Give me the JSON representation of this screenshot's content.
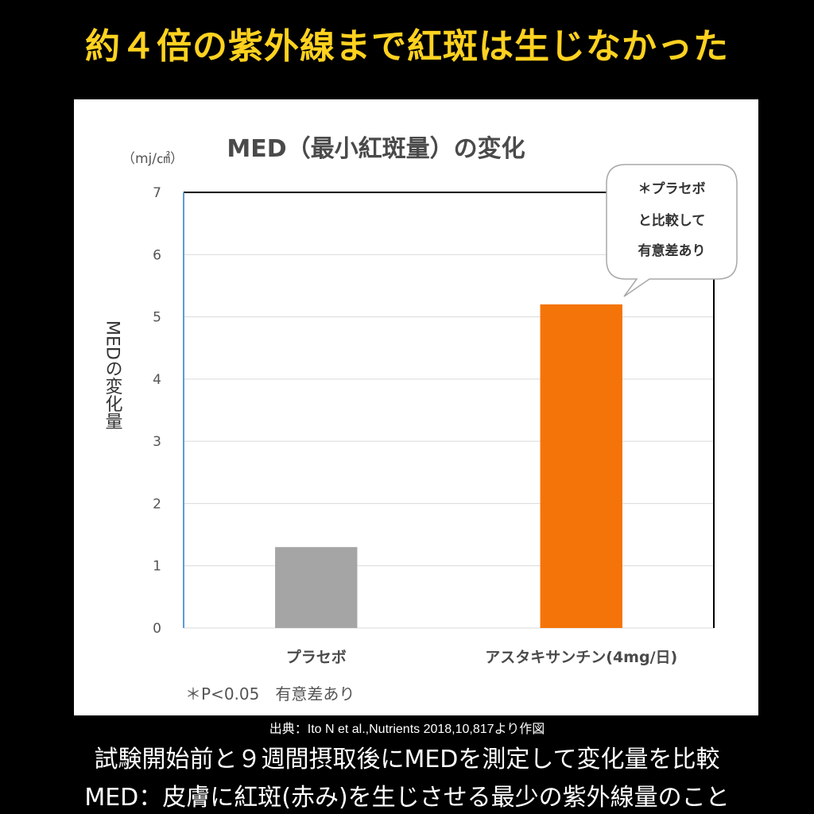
{
  "headline": "約４倍の紫外線まで紅斑は生じなかった",
  "citation": "出典：Ito N et al.,Nutrients 2018,10,817より作図",
  "footer": {
    "line1": "試験開始前と９週間摂取後にMEDを測定して変化量を比較",
    "line2": "MED：皮膚に紅斑(赤み)を生じさせる最少の紫外線量のこと"
  },
  "callout": {
    "lines": [
      "＊プラセボ",
      "と比較して",
      "有意差あり"
    ]
  },
  "significance_note": "＊P<0.05　有意差あり",
  "colors": {
    "headline": "#FFD21F",
    "placebo_bar": "#A5A5A5",
    "astaxanthin_bar": "#F47409",
    "y_axis_line": "#5B9BD5",
    "gridline": "#D9D9D9"
  },
  "chart_data": {
    "type": "bar",
    "title": "MED（最小紅斑量）の変化",
    "unit": "（mj/㎠）",
    "ylabel": "MEDの変化量",
    "xlabel": "",
    "categories": [
      "プラセボ",
      "アスタキサンチン(4mg/日)"
    ],
    "values": [
      1.3,
      5.2
    ],
    "ylim": [
      0,
      7
    ],
    "yticks": [
      0,
      1,
      2,
      3,
      4,
      5,
      6,
      7
    ],
    "grid": true,
    "legend": "none"
  }
}
